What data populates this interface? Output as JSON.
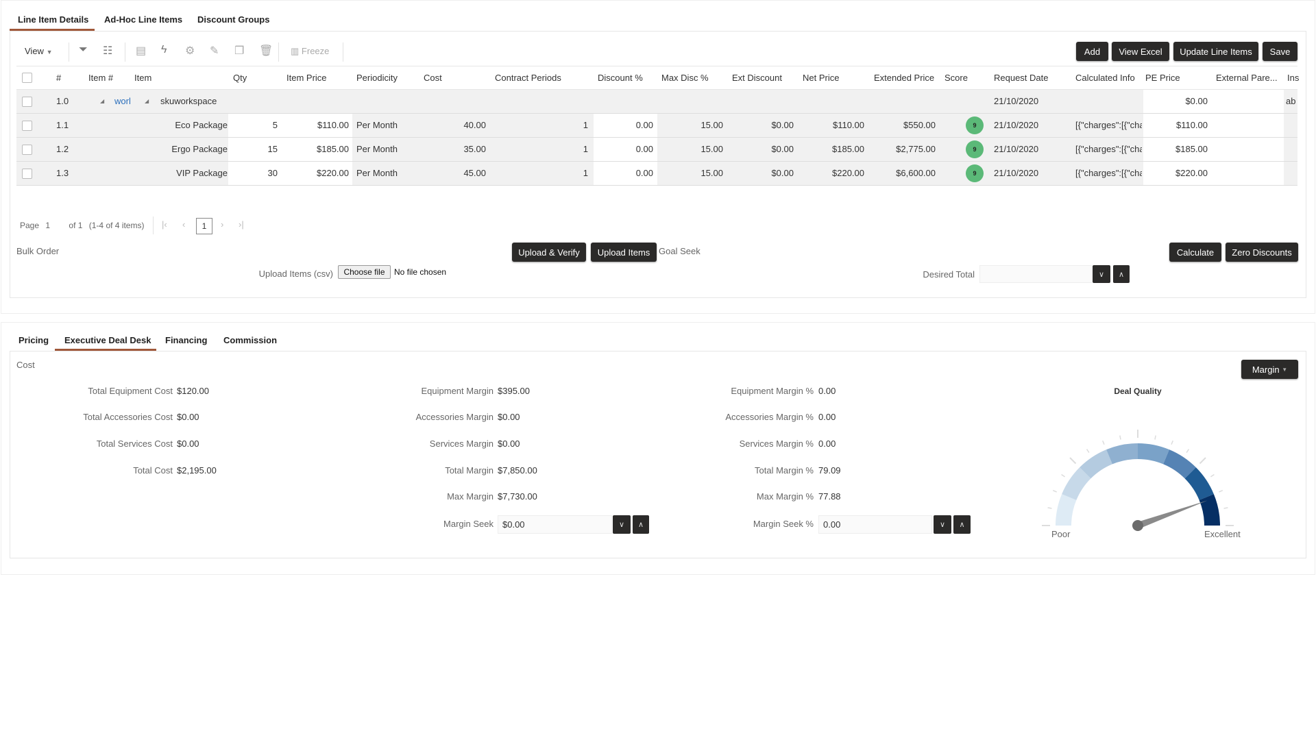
{
  "top_tabs": [
    "Line Item Details",
    "Ad-Hoc Line Items",
    "Discount Groups"
  ],
  "toolbar": {
    "view": "View",
    "freeze": "Freeze",
    "buttons": [
      "Add",
      "View Excel",
      "Update Line Items",
      "Save"
    ],
    "icons": [
      "filter-icon",
      "filter-list-icon",
      "export-icon",
      "flash-add-icon",
      "gear-icon",
      "pencil-icon",
      "copy-icon",
      "trash-icon"
    ]
  },
  "grid": {
    "columns": [
      "#",
      "Item #",
      "Item",
      "Qty",
      "Item Price",
      "Periodicity",
      "Cost",
      "Contract Periods",
      "Discount %",
      "Max Disc %",
      "Ext Discount",
      "Net Price",
      "Extended Price",
      "Score",
      "Request Date",
      "Calculated Info",
      "PE Price",
      "External Pare...",
      "Ins"
    ],
    "parent": {
      "num": "1.0",
      "item_no": "worl",
      "item": "skuworkspace",
      "request_date": "21/10/2020",
      "pe_price": "$0.00",
      "ins": "ab"
    },
    "rows": [
      {
        "num": "1.1",
        "item": "Eco Package",
        "qty": "5",
        "item_price": "$110.00",
        "periodicity": "Per Month",
        "cost": "40.00",
        "contract_periods": "1",
        "discount": "0.00",
        "max_disc": "15.00",
        "ext_discount": "$0.00",
        "net_price": "$110.00",
        "extended_price": "$550.00",
        "score": "9",
        "request_date": "21/10/2020",
        "calc_info": "[{\"charges\":[{\"cha",
        "pe_price": "$110.00"
      },
      {
        "num": "1.2",
        "item": "Ergo Package",
        "qty": "15",
        "item_price": "$185.00",
        "periodicity": "Per Month",
        "cost": "35.00",
        "contract_periods": "1",
        "discount": "0.00",
        "max_disc": "15.00",
        "ext_discount": "$0.00",
        "net_price": "$185.00",
        "extended_price": "$2,775.00",
        "score": "9",
        "request_date": "21/10/2020",
        "calc_info": "[{\"charges\":[{\"cha",
        "pe_price": "$185.00"
      },
      {
        "num": "1.3",
        "item": "VIP Package",
        "qty": "30",
        "item_price": "$220.00",
        "periodicity": "Per Month",
        "cost": "45.00",
        "contract_periods": "1",
        "discount": "0.00",
        "max_disc": "15.00",
        "ext_discount": "$0.00",
        "net_price": "$220.00",
        "extended_price": "$6,600.00",
        "score": "9",
        "request_date": "21/10/2020",
        "calc_info": "[{\"charges\":[{\"cha",
        "pe_price": "$220.00"
      }
    ],
    "score_color": "#5bb978"
  },
  "pagination": {
    "page_label": "Page",
    "page": "1",
    "of": "of 1",
    "summary": "(1-4 of 4 items)",
    "current": "1"
  },
  "bulk": {
    "title": "Bulk Order",
    "upload_verify": "Upload & Verify",
    "upload_items": "Upload Items",
    "csv_label": "Upload Items (csv)",
    "choose_file": "Choose file",
    "no_file": "No file chosen"
  },
  "goal_seek": {
    "title": "Goal Seek",
    "calculate": "Calculate",
    "zero_discounts": "Zero Discounts",
    "desired_total_label": "Desired Total",
    "desired_total": ""
  },
  "bottom_tabs": [
    "Pricing",
    "Executive Deal Desk",
    "Financing",
    "Commission"
  ],
  "deal_desk": {
    "section": "Cost",
    "margin_button": "Margin",
    "cost": [
      [
        "Total Equipment Cost",
        "$120.00"
      ],
      [
        "Total Accessories Cost",
        "$0.00"
      ],
      [
        "Total Services Cost",
        "$0.00"
      ],
      [
        "Total Cost",
        "$2,195.00"
      ]
    ],
    "margin": [
      [
        "Equipment Margin",
        "$395.00"
      ],
      [
        "Accessories Margin",
        "$0.00"
      ],
      [
        "Services Margin",
        "$0.00"
      ],
      [
        "Total Margin",
        "$7,850.00"
      ],
      [
        "Max Margin",
        "$7,730.00"
      ]
    ],
    "margin_pct": [
      [
        "Equipment Margin %",
        "0.00"
      ],
      [
        "Accessories Margin %",
        "0.00"
      ],
      [
        "Services Margin %",
        "0.00"
      ],
      [
        "Total Margin %",
        "79.09"
      ],
      [
        "Max Margin %",
        "77.88"
      ]
    ],
    "margin_seek_label": "Margin Seek",
    "margin_seek": "$0.00",
    "margin_seek_pct_label": "Margin Seek %",
    "margin_seek_pct": "0.00"
  },
  "gauge": {
    "title": "Deal Quality",
    "min_label": "Poor",
    "max_label": "Excellent",
    "needle_fraction": 0.89,
    "colors": [
      "#deebf5",
      "#c7d9e9",
      "#b4cbe0",
      "#8fb0d0",
      "#7aa2c8",
      "#5583b4",
      "#1f5b93",
      "#062f64"
    ]
  },
  "colors": {
    "accent": "#a0583a",
    "button": "#2b2a29",
    "link": "#2a6ebb"
  }
}
